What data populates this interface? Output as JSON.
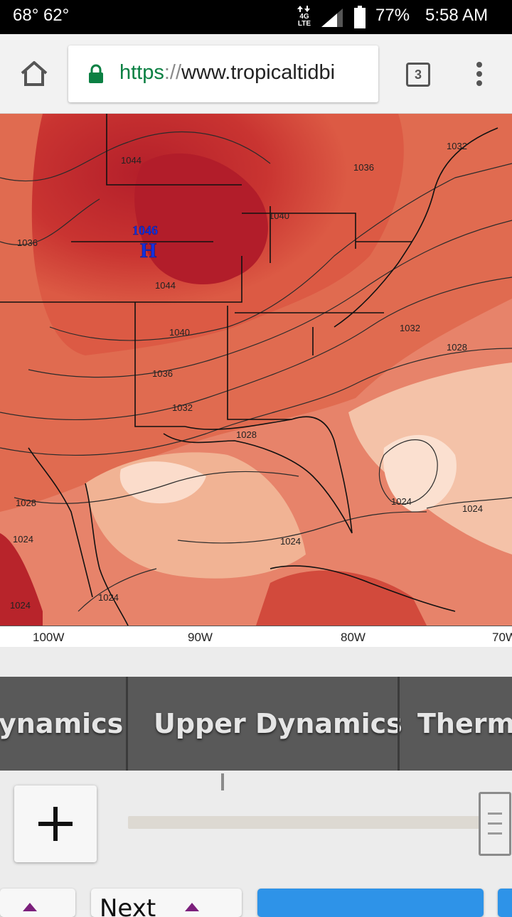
{
  "status_bar": {
    "temps": "68°  62°",
    "network": "4G LTE",
    "battery": "77%",
    "time": "5:58 AM"
  },
  "browser": {
    "url_scheme": "https",
    "url_sep": "://",
    "url_host": "www.tropicaltidbi",
    "tab_count": "3",
    "icons": [
      "home-icon",
      "lock-icon",
      "tab-switcher-icon",
      "overflow-menu-icon"
    ],
    "lock_color": "#0b8043"
  },
  "map": {
    "high_pressure_value": "1046",
    "high_pressure_symbol": "H",
    "isobar_labels": [
      "1044",
      "1036",
      "1040",
      "1036",
      "1032",
      "1044",
      "1040",
      "1036",
      "1032",
      "1032",
      "1028",
      "1028",
      "1028",
      "1024",
      "1024",
      "1024",
      "1024",
      "1024",
      "1024"
    ],
    "longitude_labels": [
      "100W",
      "90W",
      "80W",
      "70W"
    ],
    "colors": {
      "deep_red": "#b41f2a",
      "red": "#cf3c34",
      "orange": "#e9866a",
      "light": "#f5c6ad",
      "pale": "#fbe0d0",
      "high_label": "#1330e0"
    }
  },
  "tabs": {
    "items": [
      "ynamics",
      "Upper Dynamics",
      "Thermo"
    ]
  },
  "controls": {
    "zoom_in_symbol": "+",
    "next_label": "Next"
  }
}
